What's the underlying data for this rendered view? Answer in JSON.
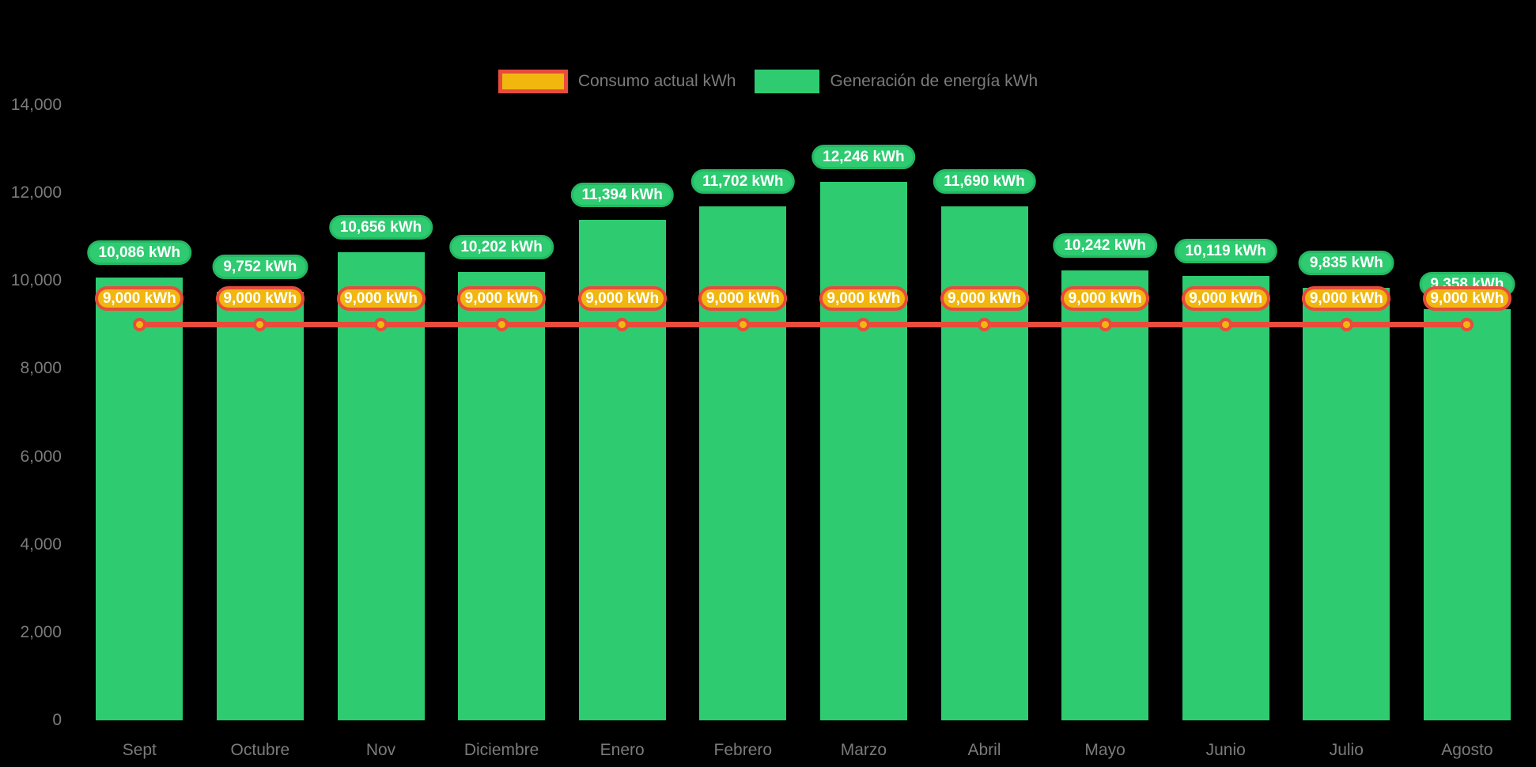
{
  "colors": {
    "background": "#000000",
    "bar_green": "#2ecb71",
    "green_dark_border": "#25b863",
    "line_red": "#e74c3c",
    "marker_yellow": "#f1b70f",
    "axis_text": "#7b7b7b",
    "value_label_text": "#ffffff"
  },
  "legend": {
    "items": [
      {
        "key": "consumo",
        "label": "Consumo actual kWh"
      },
      {
        "key": "generacion",
        "label": "Generación de energía kWh"
      }
    ]
  },
  "chart_data": {
    "type": "bar",
    "categories": [
      "Sept",
      "Octubre",
      "Nov",
      "Diciembre",
      "Enero",
      "Febrero",
      "Marzo",
      "Abril",
      "Mayo",
      "Junio",
      "Julio",
      "Agosto"
    ],
    "series": [
      {
        "name": "Generación de energía kWh",
        "type": "bar",
        "color": "#2ecb71",
        "values": [
          10086,
          9752,
          10656,
          10202,
          11394,
          11702,
          12246,
          11690,
          10242,
          10119,
          9835,
          9358
        ],
        "data_labels": [
          "10,086 kWh",
          "9,752 kWh",
          "10,656 kWh",
          "10,202 kWh",
          "11,394 kWh",
          "11,702 kWh",
          "12,246 kWh",
          "11,690 kWh",
          "10,242 kWh",
          "10,119 kWh",
          "9,835 kWh",
          "9,358 kWh"
        ]
      },
      {
        "name": "Consumo actual kWh",
        "type": "line",
        "color": "#e74c3c",
        "marker_color": "#f1b70f",
        "values": [
          9000,
          9000,
          9000,
          9000,
          9000,
          9000,
          9000,
          9000,
          9000,
          9000,
          9000,
          9000
        ],
        "data_labels": [
          "9,000 kWh",
          "9,000 kWh",
          "9,000 kWh",
          "9,000 kWh",
          "9,000 kWh",
          "9,000 kWh",
          "9,000 kWh",
          "9,000 kWh",
          "9,000 kWh",
          "9,000 kWh",
          "9,000 kWh",
          "9,000 kWh"
        ]
      }
    ],
    "yticks": [
      0,
      2000,
      4000,
      6000,
      8000,
      10000,
      12000,
      14000
    ],
    "ytick_labels": [
      "0",
      "2,000",
      "4,000",
      "6,000",
      "8,000",
      "10,000",
      "12,000",
      "14,000"
    ],
    "ylim": [
      0,
      14000
    ],
    "xlabel": "",
    "ylabel": "",
    "title": "",
    "grid": false,
    "legend_position": "top-center"
  }
}
